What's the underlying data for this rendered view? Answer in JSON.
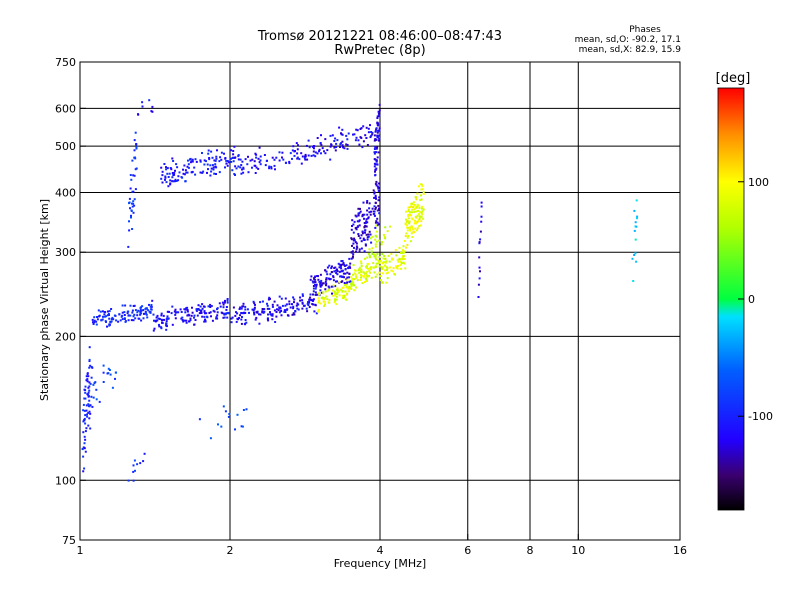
{
  "chart_data": {
    "type": "scatter",
    "title": "Tromsø 20121221 08:46:00–08:47:43",
    "subtitle": "RwPretec (8p)",
    "xlabel": "Frequency [MHz]",
    "ylabel": "Stationary phase Virtual Height [km]",
    "x_scale": "log",
    "y_scale": "log",
    "xlim": [
      1,
      16
    ],
    "ylim": [
      75,
      750
    ],
    "x_ticks": [
      1,
      2,
      4,
      6,
      8,
      10,
      16
    ],
    "x_tick_labels": [
      "1",
      "2",
      "4",
      "6",
      "8",
      "10",
      "16"
    ],
    "x_grid": [
      2,
      4,
      6,
      8,
      10
    ],
    "y_ticks": [
      75,
      100,
      200,
      300,
      400,
      500,
      600,
      750
    ],
    "y_tick_labels": [
      "75",
      "100",
      "200",
      "300",
      "400",
      "500",
      "600",
      "750"
    ],
    "y_grid": [
      100,
      200,
      300,
      400,
      500,
      600
    ],
    "grid": true,
    "phases_legend": {
      "heading": "Phases",
      "line_o": "mean, sd,O: -90.2, 17.1",
      "line_x": "mean, sd,X:  82.9, 15.9"
    },
    "colorbar": {
      "unit_label": "[deg]",
      "range": [
        -180,
        180
      ],
      "ticks": [
        100,
        0,
        -100
      ],
      "tick_labels": [
        "100",
        "0",
        "-100"
      ],
      "stops": [
        {
          "v": -180,
          "c": "#000000"
        },
        {
          "v": -150,
          "c": "#3a0070"
        },
        {
          "v": -120,
          "c": "#2200ff"
        },
        {
          "v": -60,
          "c": "#0060ff"
        },
        {
          "v": -15,
          "c": "#00e0ff"
        },
        {
          "v": 0,
          "c": "#00ff40"
        },
        {
          "v": 60,
          "c": "#b0ff00"
        },
        {
          "v": 100,
          "c": "#ffff00"
        },
        {
          "v": 140,
          "c": "#ff9000"
        },
        {
          "v": 180,
          "c": "#ff0000"
        }
      ]
    },
    "series": [
      {
        "mode": "O",
        "segments": [
          [
            1.01,
            1.06,
            100,
            205,
            70,
            -100,
            0.05
          ],
          [
            1.06,
            1.4,
            212,
            232,
            120,
            -95,
            0.03
          ],
          [
            1.4,
            2.0,
            210,
            235,
            150,
            -110,
            0.03
          ],
          [
            2.0,
            3.0,
            212,
            245,
            160,
            -115,
            0.03
          ],
          [
            2.9,
            3.5,
            240,
            290,
            130,
            -120,
            0.03
          ],
          [
            3.5,
            4.0,
            280,
            420,
            140,
            -125,
            0.05
          ],
          [
            3.9,
            4.0,
            420,
            620,
            60,
            -120,
            0.04
          ],
          [
            1.25,
            1.3,
            300,
            560,
            40,
            -90,
            0.08
          ],
          [
            1.3,
            1.45,
            580,
            620,
            8,
            -110,
            0.03
          ],
          [
            1.45,
            2.1,
            420,
            490,
            140,
            -105,
            0.04
          ],
          [
            2.1,
            3.0,
            440,
            510,
            90,
            -110,
            0.04
          ],
          [
            3.0,
            3.9,
            470,
            560,
            70,
            -115,
            0.04
          ],
          [
            1.05,
            1.2,
            140,
            185,
            20,
            -80,
            0.03
          ],
          [
            1.25,
            1.35,
            98,
            118,
            10,
            -90,
            0.03
          ],
          [
            1.7,
            2.2,
            115,
            150,
            14,
            -80,
            0.03
          ],
          [
            6.3,
            6.4,
            230,
            400,
            14,
            -120,
            0.03
          ],
          [
            12.8,
            13.2,
            250,
            420,
            14,
            -20,
            0.08
          ]
        ]
      },
      {
        "mode": "X",
        "segments": [
          [
            3.0,
            3.5,
            230,
            260,
            80,
            85,
            0.03
          ],
          [
            3.5,
            4.0,
            250,
            300,
            90,
            80,
            0.03
          ],
          [
            4.0,
            4.5,
            260,
            310,
            80,
            85,
            0.03
          ],
          [
            4.5,
            4.9,
            300,
            420,
            110,
            90,
            0.04
          ],
          [
            3.8,
            4.2,
            290,
            350,
            30,
            70,
            0.04
          ]
        ]
      }
    ]
  }
}
